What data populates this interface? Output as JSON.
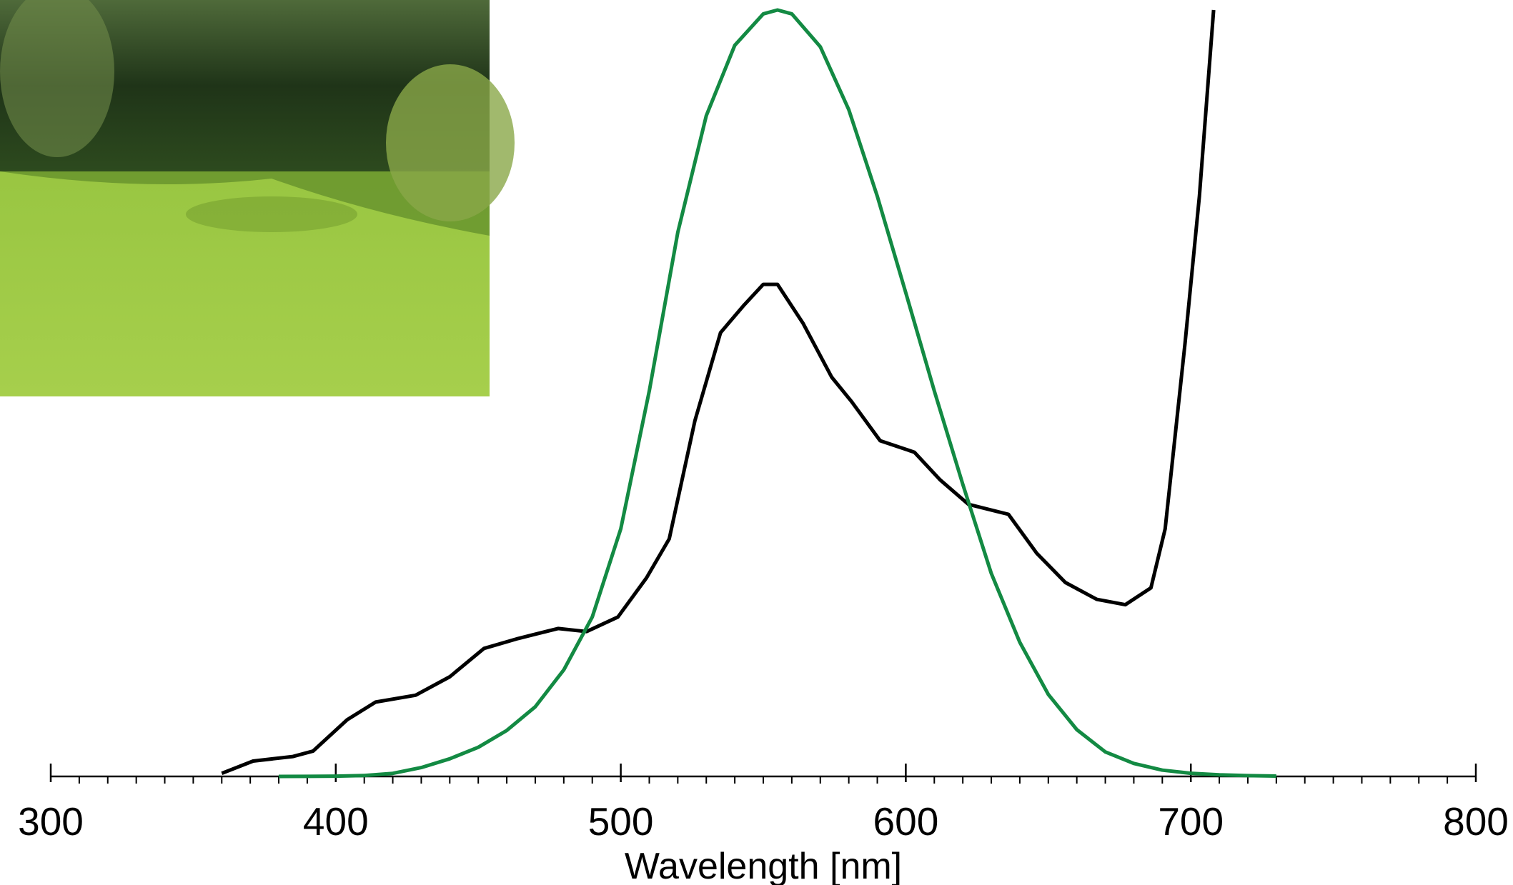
{
  "chart_data": {
    "type": "line",
    "x_label": "Wavelength [nm]",
    "xlim": [
      300,
      800
    ],
    "xticks": [
      300,
      400,
      500,
      600,
      700,
      800
    ],
    "xminor_ticks": [
      310,
      320,
      330,
      340,
      350,
      360,
      370,
      380,
      390,
      410,
      420,
      430,
      440,
      450,
      460,
      470,
      480,
      490,
      510,
      520,
      530,
      540,
      550,
      560,
      570,
      580,
      590,
      610,
      620,
      630,
      640,
      650,
      660,
      670,
      680,
      690,
      710,
      720,
      730,
      740,
      750,
      760,
      770,
      780,
      790
    ],
    "ylim": [
      0,
      1
    ],
    "series": [
      {
        "color": "#000000",
        "x": [
          360,
          371,
          385,
          392,
          404,
          414,
          428,
          440,
          452,
          464,
          478,
          488,
          499,
          509,
          517,
          526,
          535,
          543,
          550,
          555,
          564,
          574,
          581,
          591,
          603,
          612,
          622,
          636,
          646,
          656,
          667,
          677,
          686,
          691,
          698,
          703,
          708
        ],
        "values": [
          0.004,
          0.02,
          0.026,
          0.033,
          0.074,
          0.097,
          0.106,
          0.13,
          0.167,
          0.18,
          0.193,
          0.189,
          0.208,
          0.259,
          0.31,
          0.464,
          0.579,
          0.614,
          0.642,
          0.642,
          0.591,
          0.521,
          0.489,
          0.438,
          0.423,
          0.387,
          0.355,
          0.342,
          0.291,
          0.253,
          0.231,
          0.224,
          0.246,
          0.323,
          0.566,
          0.757,
          1.0
        ]
      },
      {
        "color": "#138a43",
        "x": [
          380,
          390,
          400,
          410,
          420,
          430,
          440,
          450,
          460,
          470,
          480,
          490,
          500,
          510,
          520,
          530,
          540,
          550,
          555,
          560,
          570,
          580,
          590,
          600,
          610,
          620,
          630,
          640,
          650,
          660,
          670,
          680,
          690,
          700,
          710,
          720,
          730
        ],
        "values": [
          4e-05,
          0.0001,
          0.0004,
          0.0012,
          0.004,
          0.0116,
          0.023,
          0.038,
          0.06,
          0.091,
          0.139,
          0.208,
          0.323,
          0.503,
          0.71,
          0.862,
          0.954,
          0.995,
          1.0,
          0.995,
          0.952,
          0.87,
          0.757,
          0.631,
          0.503,
          0.381,
          0.265,
          0.175,
          0.107,
          0.061,
          0.032,
          0.017,
          0.0082,
          0.0041,
          0.0021,
          0.001,
          0.0005
        ]
      }
    ]
  }
}
